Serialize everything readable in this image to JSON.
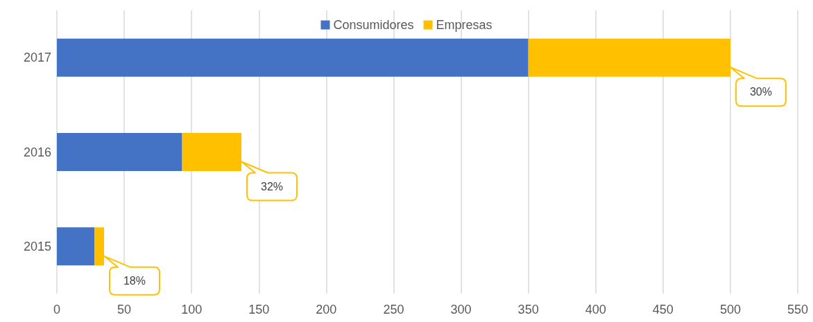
{
  "chart_data": {
    "type": "bar",
    "orientation": "horizontal",
    "stacked": true,
    "categories": [
      "2017",
      "2016",
      "2015"
    ],
    "series": [
      {
        "name": "Consumidores",
        "color": "#4472c4",
        "values": [
          350,
          93,
          28
        ]
      },
      {
        "name": "Empresas",
        "color": "#ffc000",
        "values": [
          150,
          44,
          7
        ]
      }
    ],
    "xlim": [
      0,
      550
    ],
    "xticks": [
      0,
      50,
      100,
      150,
      200,
      250,
      300,
      350,
      400,
      450,
      500,
      550
    ],
    "grid": "x",
    "legend": "top",
    "annotations": [
      "30%",
      "32%",
      "18%"
    ]
  }
}
